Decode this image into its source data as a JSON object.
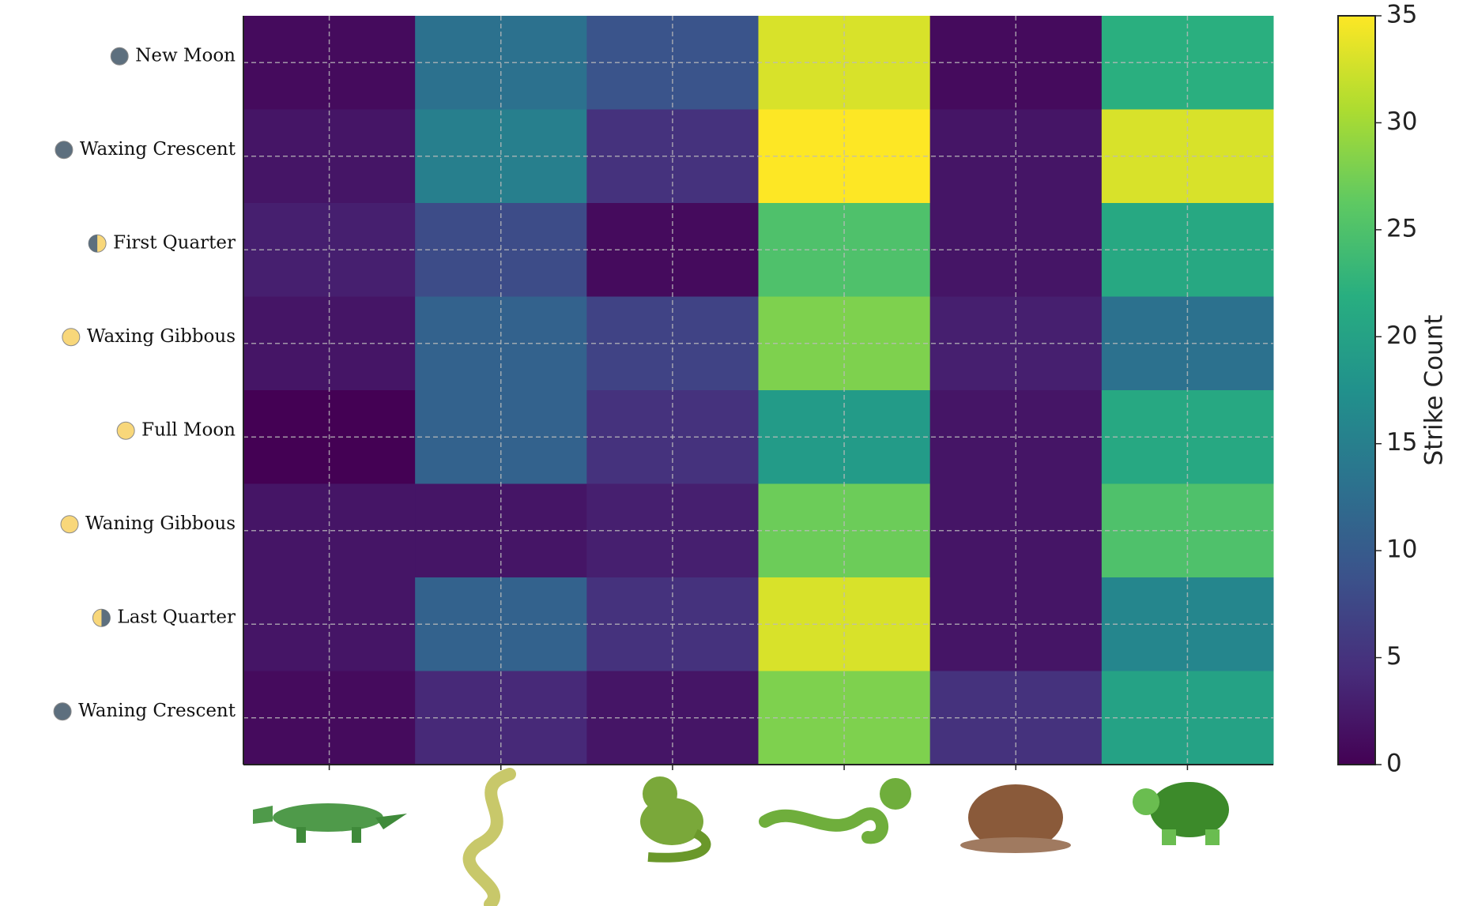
{
  "chart_data": {
    "type": "heatmap",
    "categories": [
      null,
      null,
      null,
      null,
      null,
      null
    ],
    "rows": [
      "New Moon",
      "Waxing Crescent",
      "First Quarter",
      "Waxing Gibbous",
      "Full Moon",
      "Waning Gibbous",
      "Last Quarter",
      "Waning Crescent"
    ],
    "values": [
      [
        1,
        13,
        9,
        33,
        1,
        22
      ],
      [
        2,
        15,
        5,
        35,
        2,
        33
      ],
      [
        3,
        8,
        1,
        25,
        2,
        21
      ],
      [
        2,
        11,
        7,
        28,
        3,
        13
      ],
      [
        0,
        11,
        5,
        19,
        2,
        21
      ],
      [
        2,
        2,
        3,
        27,
        2,
        25
      ],
      [
        2,
        11,
        5,
        33,
        2,
        16
      ],
      [
        1,
        4,
        2,
        28,
        5,
        20
      ]
    ],
    "colormap": "viridis",
    "zlim": [
      0,
      35
    ],
    "zticks": [
      0,
      5,
      10,
      15,
      20,
      25,
      30,
      35
    ],
    "zlabel": "Strike Count",
    "grid": true
  }
}
